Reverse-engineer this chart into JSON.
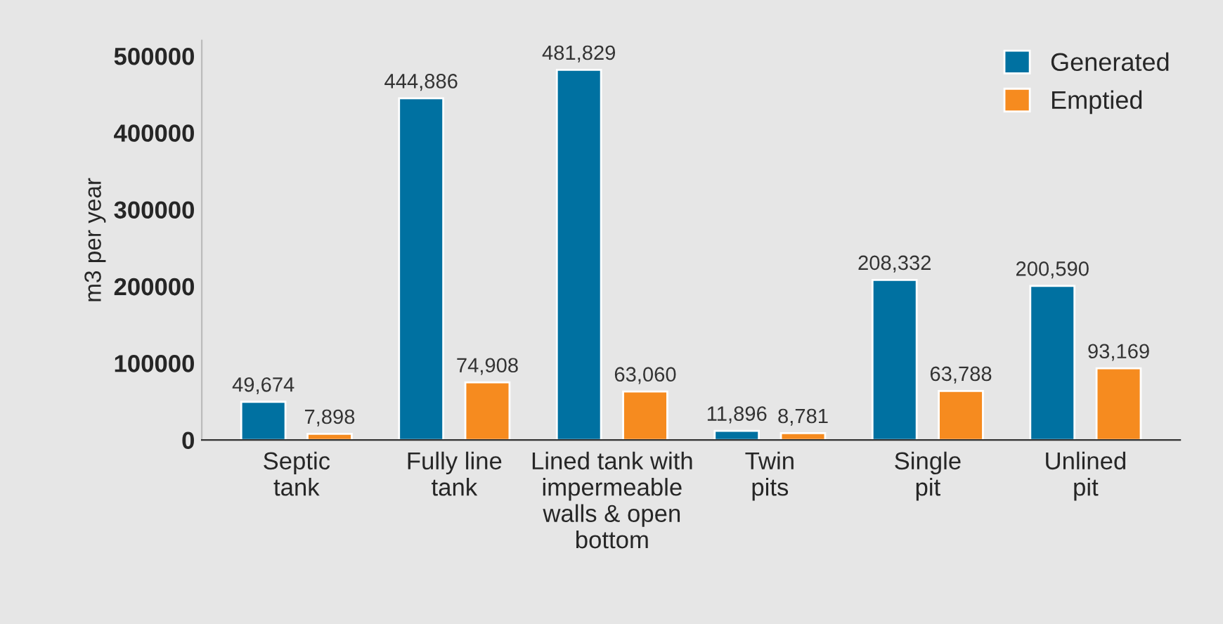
{
  "chart_data": {
    "type": "bar",
    "ylabel": "m3 per year",
    "categories": [
      "Septic\ntank",
      "Fully line\ntank",
      "Lined tank with\nimpermeable\nwalls & open\nbottom",
      "Twin\npits",
      "Single\npit",
      "Unlined\npit"
    ],
    "series": [
      {
        "name": "Generated",
        "color": "#0071a1",
        "values": [
          49674,
          444886,
          481829,
          11896,
          208332,
          200590
        ],
        "value_labels": [
          "49,674",
          "444,886",
          "481,829",
          "11,896",
          "208,332",
          "200,590"
        ]
      },
      {
        "name": "Emptied",
        "color": "#f68b1f",
        "values": [
          7898,
          74908,
          63060,
          8781,
          63788,
          93169
        ],
        "value_labels": [
          "7,898",
          "74,908",
          "63,060",
          "8,781",
          "63,788",
          "93,169"
        ]
      }
    ],
    "ylim": [
      0,
      520000
    ],
    "yticks": [
      0,
      100000,
      200000,
      300000,
      400000,
      500000
    ],
    "grid": false,
    "legend": "top right"
  }
}
